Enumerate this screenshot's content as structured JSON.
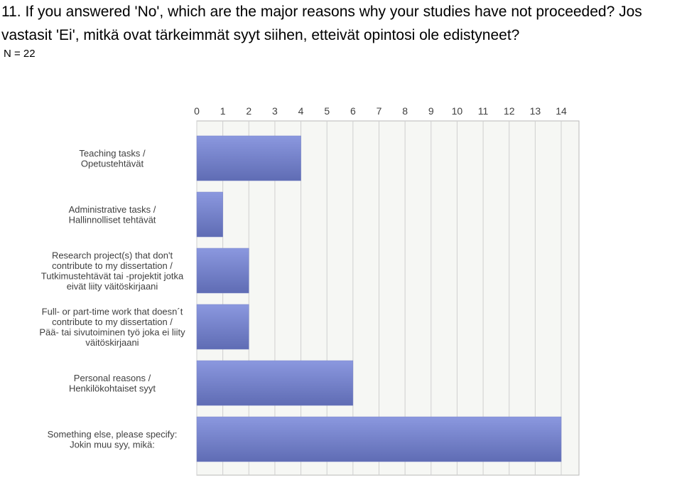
{
  "question": {
    "text": "11. If you answered 'No', which are the major reasons why your studies have not proceeded? Jos vastasit 'Ei', mitkä ovat tärkeimmät syyt siihen, etteivät opintosi ole edistyneet?",
    "n_label": "N = 22"
  },
  "colors": {
    "bar_light": "#8b98df",
    "bar_dark": "#5f6cb4",
    "grid": "#cfcfcf",
    "plot_bg": "#f6f7f4"
  },
  "chart_data": {
    "type": "bar",
    "orientation": "horizontal",
    "title": "",
    "xlabel": "",
    "ylabel": "",
    "xlim": [
      0,
      14
    ],
    "ticks": [
      0,
      1,
      2,
      3,
      4,
      5,
      6,
      7,
      8,
      9,
      10,
      11,
      12,
      13,
      14
    ],
    "grid": true,
    "categories": [
      [
        "Teaching tasks /",
        "Opetustehtävät"
      ],
      [
        "Administrative tasks /",
        "Hallinnolliset tehtävät"
      ],
      [
        "Research project(s) that don't",
        "contribute to my dissertation /",
        "Tutkimustehtävät tai -projektit jotka",
        "eivät liity väitöskirjaani"
      ],
      [
        "Full- or part-time work that doesn´t",
        "contribute to my dissertation /",
        "Pää- tai sivutoiminen työ joka ei liity",
        "väitöskirjaani"
      ],
      [
        "Personal reasons /",
        "Henkilökohtaiset syyt"
      ],
      [
        "Something else, please specify:",
        "Jokin muu syy, mikä:"
      ]
    ],
    "values": [
      4,
      1,
      2,
      2,
      6,
      14
    ]
  }
}
